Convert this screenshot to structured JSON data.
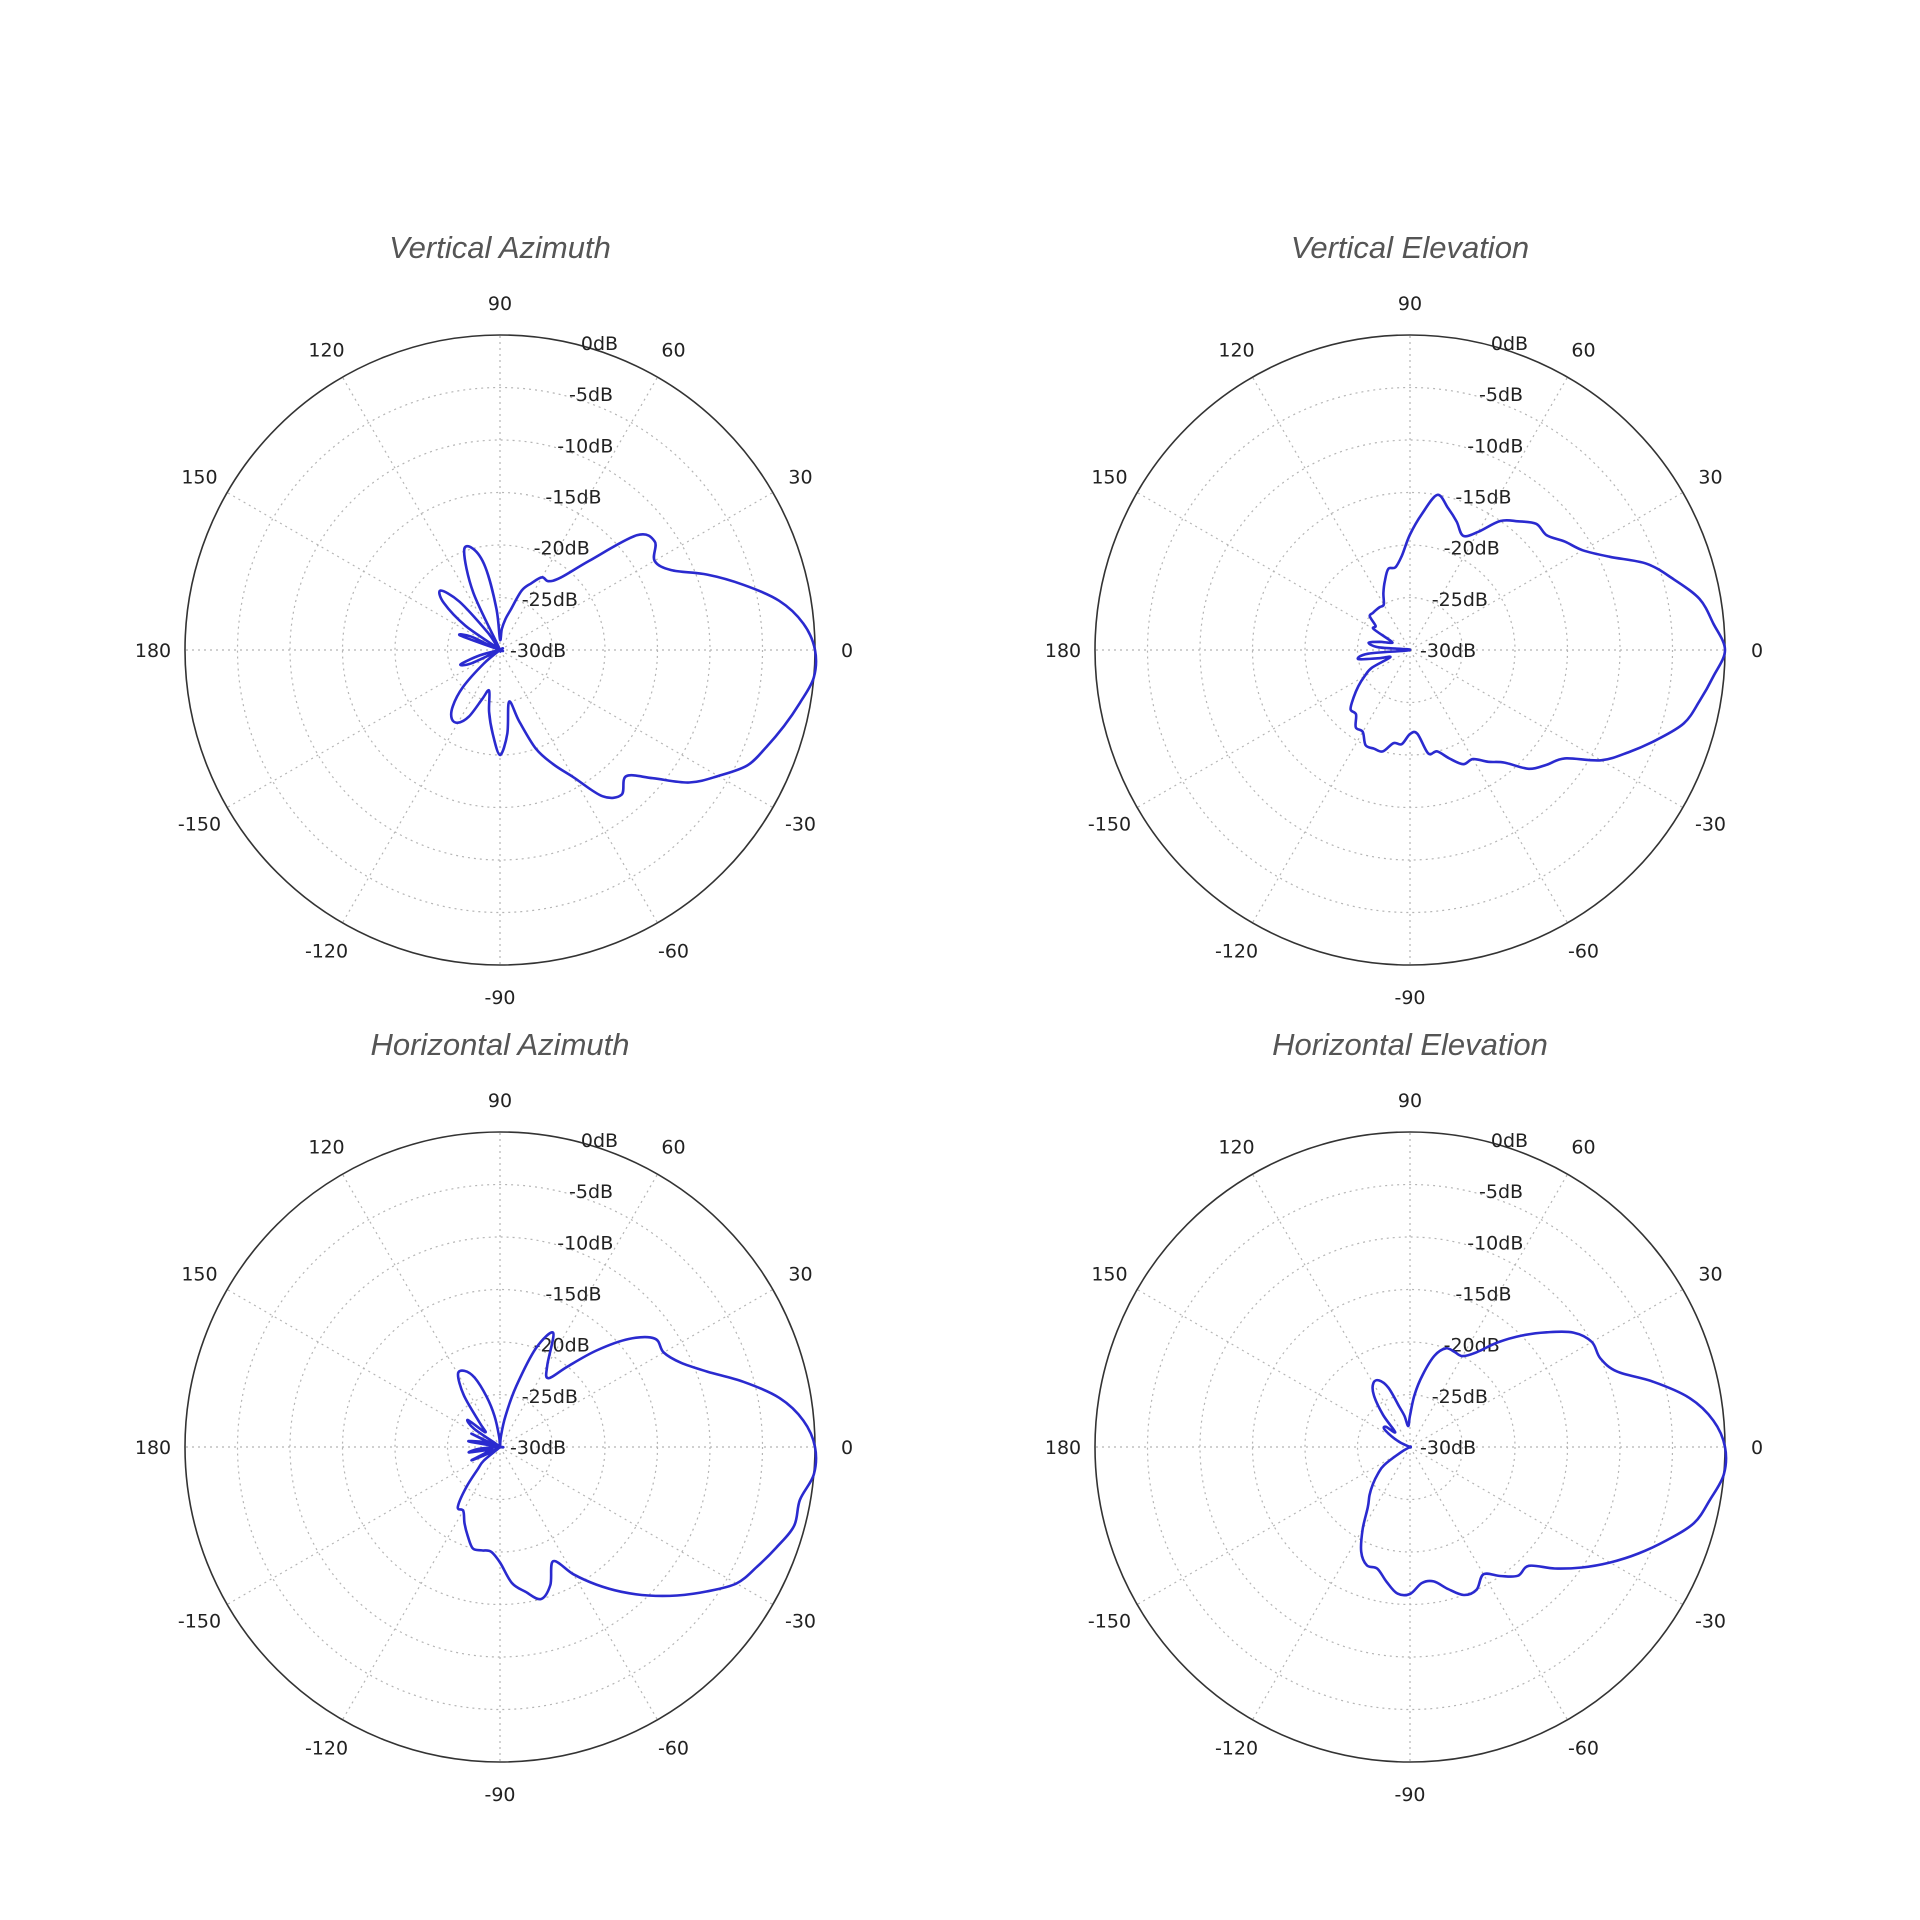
{
  "chart_data": [
    {
      "type": "polar",
      "title": "Vertical Azimuth",
      "angle_ticks": [
        "0",
        "30",
        "60",
        "90",
        "120",
        "150",
        "180",
        "-150",
        "-120",
        "-90",
        "-60",
        "-30"
      ],
      "radial_ticks": [
        "0dB",
        "-5dB",
        "-10dB",
        "-15dB",
        "-20dB",
        "-25dB",
        "-30dB"
      ],
      "r_range": [
        -30,
        0
      ],
      "grid": true,
      "series": [
        {
          "color": "#2a2acf",
          "theta": [
            0,
            5,
            10,
            15,
            20,
            25,
            30,
            35,
            40,
            45,
            50,
            55,
            60,
            65,
            70,
            75,
            80,
            85,
            90,
            95,
            100,
            105,
            110,
            115,
            120,
            125,
            130,
            135,
            140,
            145,
            150,
            155,
            160,
            165,
            170,
            175,
            180,
            185,
            190,
            195,
            200,
            205,
            210,
            215,
            220,
            225,
            230,
            235,
            240,
            245,
            250,
            255,
            260,
            265,
            270,
            275,
            280,
            285,
            290,
            295,
            300,
            305,
            310,
            315,
            320,
            325,
            330,
            335,
            340,
            345,
            350,
            355
          ],
          "r": [
            0,
            -1,
            -3,
            -6,
            -9,
            -12,
            -13,
            -12,
            -13,
            -18,
            -21,
            -22,
            -22,
            -23,
            -24,
            -26,
            -27,
            -28,
            -29,
            -26,
            -22,
            -20,
            -20,
            -24,
            -30,
            -28,
            -24,
            -22,
            -23,
            -26,
            -30,
            -27,
            -26,
            -30,
            -30,
            -30,
            -30,
            -30,
            -30,
            -28,
            -26,
            -27,
            -30,
            -30,
            -28,
            -25,
            -23,
            -22,
            -22,
            -23,
            -25,
            -26,
            -24,
            -22,
            -20,
            -22,
            -25,
            -23,
            -20,
            -18,
            -16,
            -13,
            -12,
            -13,
            -11,
            -8,
            -6,
            -4,
            -3,
            -2,
            -1,
            0
          ]
        }
      ]
    },
    {
      "type": "polar",
      "title": "Vertical Elevation",
      "angle_ticks": [
        "0",
        "30",
        "60",
        "90",
        "120",
        "150",
        "180",
        "-150",
        "-120",
        "-90",
        "-60",
        "-30"
      ],
      "radial_ticks": [
        "0dB",
        "-5dB",
        "-10dB",
        "-15dB",
        "-20dB",
        "-25dB",
        "-30dB"
      ],
      "r_range": [
        -30,
        0
      ],
      "grid": true,
      "series": [
        {
          "color": "#2a2acf",
          "theta": [
            0,
            5,
            10,
            15,
            20,
            25,
            30,
            35,
            40,
            45,
            50,
            55,
            60,
            65,
            70,
            75,
            80,
            85,
            90,
            95,
            100,
            105,
            110,
            115,
            120,
            125,
            130,
            135,
            140,
            145,
            150,
            155,
            160,
            165,
            170,
            175,
            180,
            185,
            190,
            195,
            200,
            205,
            210,
            215,
            220,
            225,
            230,
            235,
            240,
            245,
            250,
            255,
            260,
            265,
            270,
            275,
            280,
            285,
            290,
            295,
            300,
            305,
            310,
            315,
            320,
            325,
            330,
            335,
            340,
            345,
            350,
            355
          ],
          "r": [
            0,
            -1,
            -2,
            -4,
            -6,
            -9,
            -11,
            -12,
            -13,
            -13,
            -14,
            -15,
            -17,
            -18,
            -17,
            -16,
            -15,
            -17,
            -19,
            -21,
            -22,
            -22,
            -23,
            -24,
            -25,
            -25,
            -25,
            -25,
            -25,
            -26,
            -26,
            -28,
            -28,
            -27,
            -26,
            -27,
            -30,
            -26,
            -25,
            -27,
            -28,
            -26,
            -25,
            -24,
            -23,
            -22,
            -22,
            -21,
            -21,
            -20,
            -20,
            -20,
            -21,
            -21,
            -22,
            -22,
            -20,
            -20,
            -19,
            -18,
            -18,
            -17,
            -16,
            -14,
            -13,
            -12,
            -9,
            -7,
            -5,
            -3,
            -2,
            -1
          ]
        }
      ]
    },
    {
      "type": "polar",
      "title": "Horizontal Azimuth",
      "angle_ticks": [
        "0",
        "30",
        "60",
        "90",
        "120",
        "150",
        "180",
        "-150",
        "-120",
        "-90",
        "-60",
        "-30"
      ],
      "radial_ticks": [
        "0dB",
        "-5dB",
        "-10dB",
        "-15dB",
        "-20dB",
        "-25dB",
        "-30dB"
      ],
      "r_range": [
        -30,
        0
      ],
      "grid": true,
      "series": [
        {
          "color": "#2a2acf",
          "theta": [
            0,
            5,
            10,
            15,
            20,
            25,
            30,
            35,
            40,
            45,
            50,
            55,
            60,
            65,
            70,
            75,
            80,
            85,
            90,
            95,
            100,
            105,
            110,
            115,
            120,
            125,
            130,
            135,
            140,
            145,
            150,
            155,
            160,
            165,
            170,
            175,
            180,
            185,
            190,
            195,
            200,
            205,
            210,
            215,
            220,
            225,
            230,
            235,
            240,
            245,
            250,
            255,
            260,
            265,
            270,
            275,
            280,
            285,
            290,
            295,
            300,
            305,
            310,
            315,
            320,
            325,
            330,
            335,
            340,
            345,
            350,
            355
          ],
          "r": [
            0,
            -1,
            -3,
            -6,
            -9,
            -11,
            -12,
            -12,
            -14,
            -17,
            -20,
            -22,
            -21,
            -18,
            -20,
            -24,
            -27,
            -29,
            -30,
            -29,
            -27,
            -25,
            -23,
            -22,
            -22,
            -24,
            -27,
            -28,
            -26,
            -27,
            -30,
            -27,
            -29,
            -28,
            -27,
            -30,
            -30,
            -28,
            -27,
            -29,
            -29,
            -27,
            -29,
            -30,
            -28,
            -27,
            -25,
            -23,
            -23,
            -22,
            -21,
            -20,
            -20,
            -20,
            -19,
            -17,
            -16,
            -15,
            -16,
            -18,
            -16,
            -14,
            -12,
            -10,
            -8,
            -6,
            -4,
            -3,
            -2,
            -1,
            -1,
            0
          ]
        }
      ]
    },
    {
      "type": "polar",
      "title": "Horizontal Elevation",
      "angle_ticks": [
        "0",
        "30",
        "60",
        "90",
        "120",
        "150",
        "180",
        "-150",
        "-120",
        "-90",
        "-60",
        "-30"
      ],
      "radial_ticks": [
        "0dB",
        "-5dB",
        "-10dB",
        "-15dB",
        "-20dB",
        "-25dB",
        "-30dB"
      ],
      "r_range": [
        -30,
        0
      ],
      "grid": true,
      "series": [
        {
          "color": "#2a2acf",
          "theta": [
            0,
            5,
            10,
            15,
            20,
            25,
            30,
            35,
            40,
            45,
            50,
            55,
            60,
            65,
            70,
            75,
            80,
            85,
            90,
            95,
            100,
            105,
            110,
            115,
            120,
            125,
            130,
            135,
            140,
            145,
            150,
            155,
            160,
            165,
            170,
            175,
            180,
            185,
            190,
            195,
            200,
            205,
            210,
            215,
            220,
            225,
            230,
            235,
            240,
            245,
            250,
            255,
            260,
            265,
            270,
            275,
            280,
            285,
            290,
            295,
            300,
            305,
            310,
            315,
            320,
            325,
            330,
            335,
            340,
            345,
            350,
            355
          ],
          "r": [
            0,
            -1,
            -3,
            -6,
            -9,
            -10,
            -10,
            -11,
            -13,
            -15,
            -17,
            -19,
            -20,
            -20,
            -20,
            -21,
            -23,
            -25,
            -27,
            -28,
            -27,
            -26,
            -24,
            -23,
            -23,
            -24,
            -26,
            -28,
            -27,
            -27,
            -28,
            -29,
            -30,
            -30,
            -30,
            -30,
            -30,
            -30,
            -30,
            -30,
            -30,
            -30,
            -29,
            -27,
            -26,
            -25,
            -24,
            -23,
            -21,
            -19,
            -18,
            -18,
            -17,
            -16,
            -16,
            -17,
            -17,
            -16,
            -15,
            -15,
            -16,
            -15,
            -14,
            -14,
            -12,
            -10,
            -8,
            -6,
            -4,
            -2,
            -1,
            0
          ]
        }
      ]
    }
  ]
}
